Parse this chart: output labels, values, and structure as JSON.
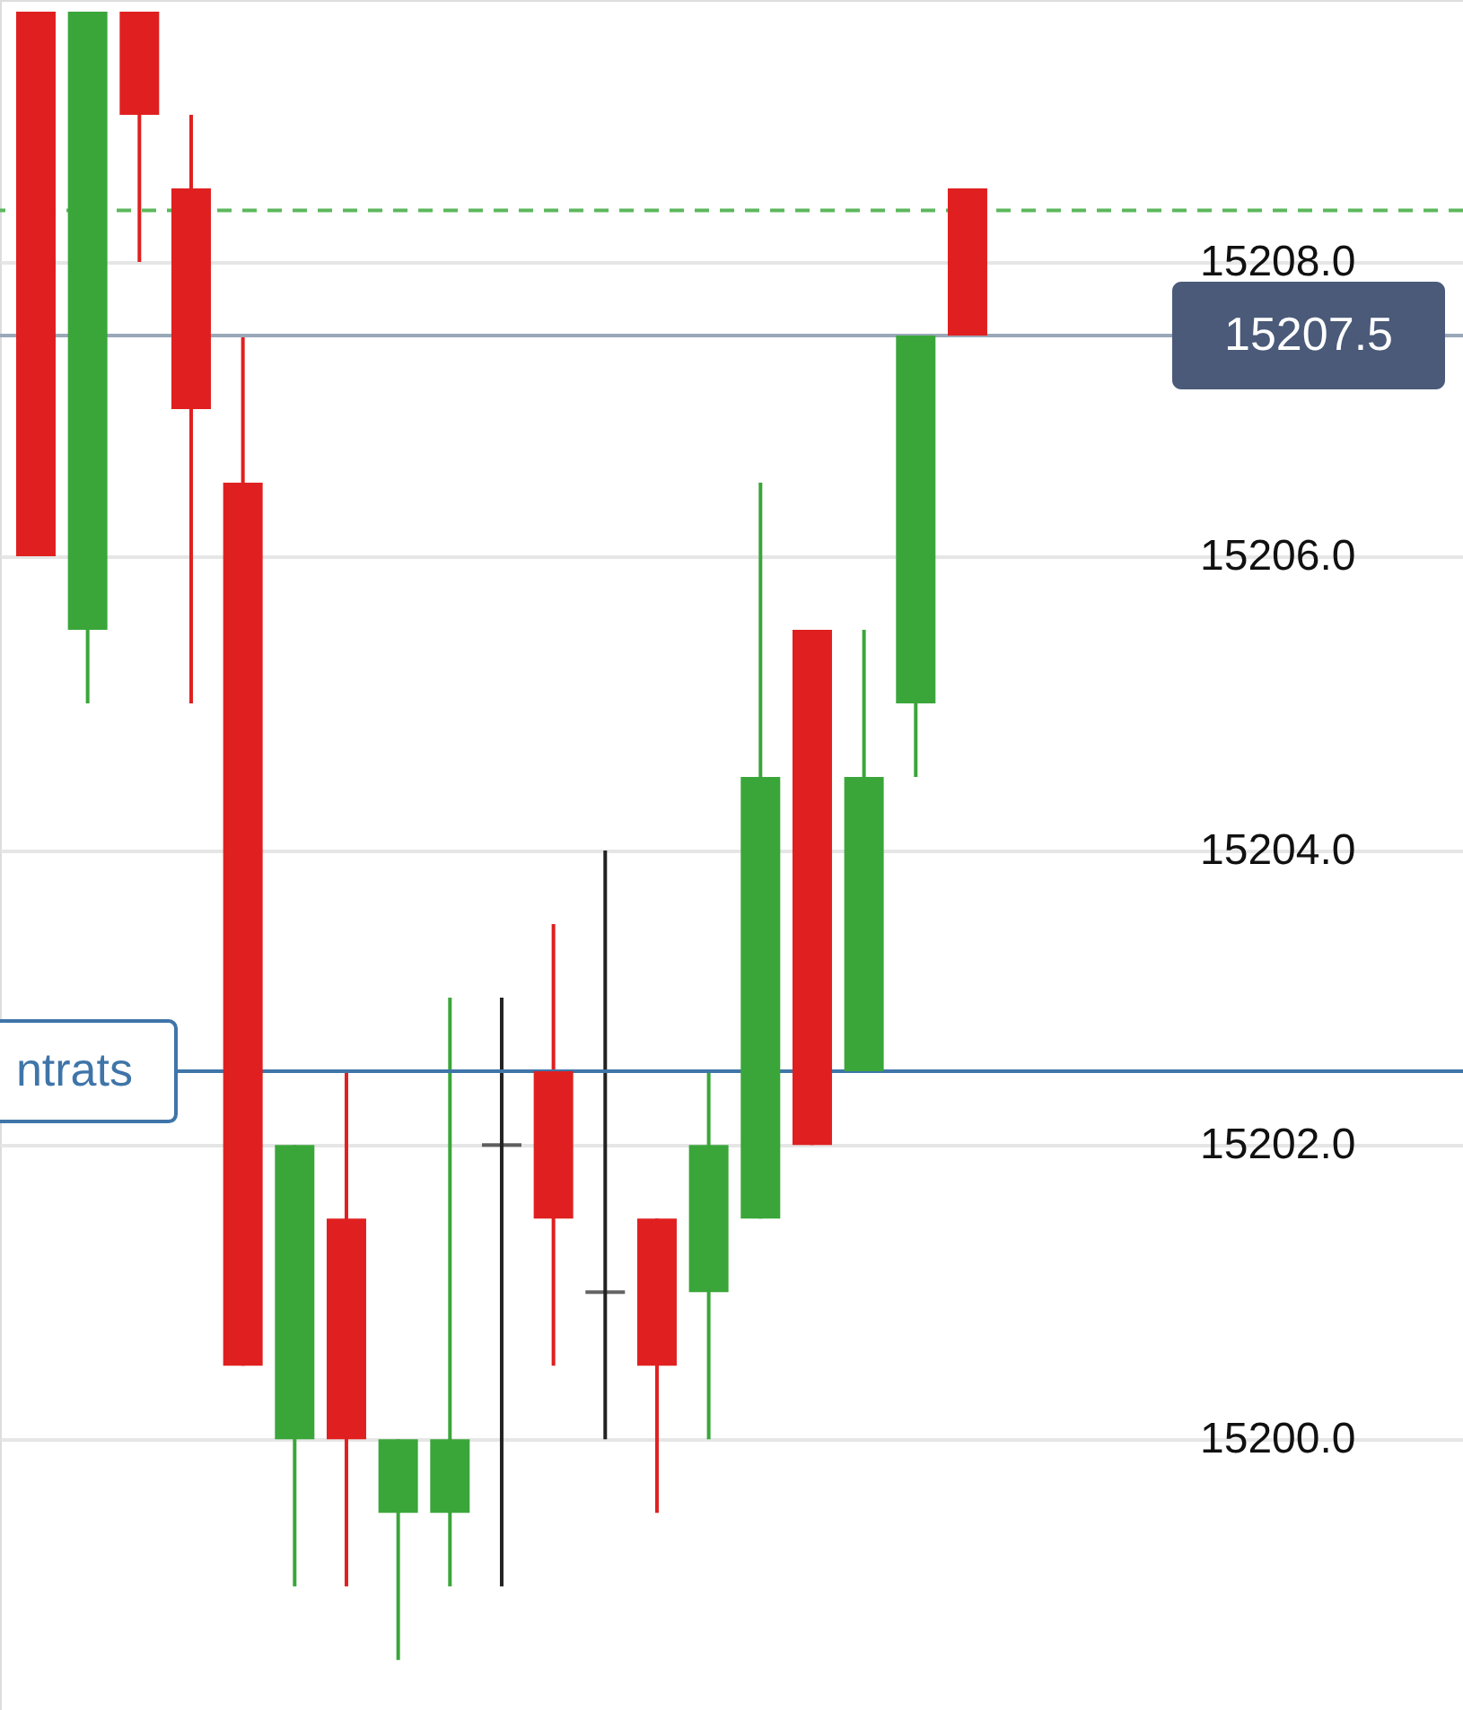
{
  "chart_data": {
    "type": "candlestick",
    "categories": [
      null,
      null,
      null,
      null,
      null,
      null,
      null,
      null,
      null,
      null,
      null,
      null,
      null,
      null,
      null,
      null,
      null,
      null,
      null
    ],
    "ohlc": [
      [
        15209.7,
        15209.7,
        15206.0,
        15206.0
      ],
      [
        15205.5,
        15209.7,
        15205.0,
        15209.7
      ],
      [
        15209.7,
        15209.7,
        15208.0,
        15209.0
      ],
      [
        15208.5,
        15209.0,
        15205.0,
        15207.0
      ],
      [
        15206.5,
        15207.5,
        15200.5,
        15200.5
      ],
      [
        15200.0,
        15202.0,
        15199.0,
        15202.0
      ],
      [
        15201.5,
        15202.5,
        15199.0,
        15200.0
      ],
      [
        15199.5,
        15200.0,
        15198.5,
        15200.0
      ],
      [
        15199.5,
        15203.0,
        15199.0,
        15200.0
      ],
      [
        15202.0,
        15203.0,
        15199.0,
        15202.0
      ],
      [
        15202.5,
        15203.5,
        15200.5,
        15201.5
      ],
      [
        15201.0,
        15204.0,
        15200.0,
        15201.0
      ],
      [
        15201.5,
        15201.5,
        15199.5,
        15200.5
      ],
      [
        15201.0,
        15202.5,
        15200.0,
        15202.0
      ],
      [
        15201.5,
        15206.5,
        15201.5,
        15204.5
      ],
      [
        15205.5,
        15205.5,
        15202.0,
        15202.0
      ],
      [
        15202.5,
        15205.5,
        15202.5,
        15204.5
      ],
      [
        15205.0,
        15207.5,
        15204.5,
        15207.5
      ],
      [
        15208.5,
        15208.5,
        15207.5,
        15207.5
      ]
    ],
    "colors": [
      "#e02020",
      "#3aa63a",
      "#e02020",
      "#e02020",
      "#e02020",
      "#3aa63a",
      "#e02020",
      "#3aa63a",
      "#3aa63a",
      "#222222",
      "#e02020",
      "#222222",
      "#e02020",
      "#3aa63a",
      "#3aa63a",
      "#e02020",
      "#3aa63a",
      "#3aa63a",
      "#e02020"
    ],
    "ylim": [
      15198.16,
      15209.78
    ],
    "yticks": [
      {
        "value": 15200,
        "label": "15200.0"
      },
      {
        "value": 15202,
        "label": "15202.0"
      },
      {
        "value": 15204,
        "label": "15204.0"
      },
      {
        "value": 15206,
        "label": "15206.0"
      },
      {
        "value": 15208,
        "label": "15208.0"
      }
    ],
    "grid": "y",
    "ref_lines": [
      {
        "axis": "y",
        "value": 15208.35,
        "color": "#5cb85c",
        "line_style": "dashed"
      },
      {
        "axis": "y",
        "value": 15207.5,
        "label": "15207.5",
        "color": "#9aa8b8",
        "line_style": "solid"
      },
      {
        "axis": "y",
        "value": 15202.5,
        "label": "ntrats",
        "color": "#3f75a8",
        "line_style": "solid"
      }
    ]
  }
}
